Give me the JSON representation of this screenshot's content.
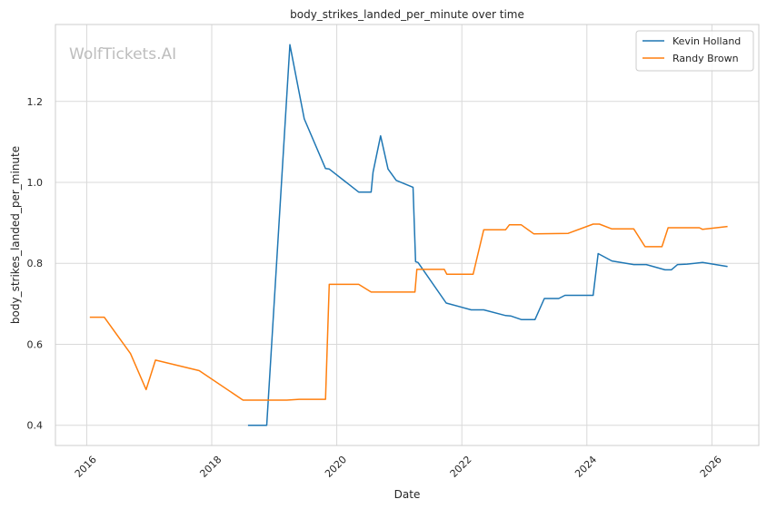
{
  "chart_data": {
    "type": "line",
    "title": "body_strikes_landed_per_minute over time",
    "xlabel": "Date",
    "ylabel": "body_strikes_landed_per_minute",
    "watermark": "WolfTickets.AI",
    "xlim": [
      2015.5,
      2026.75
    ],
    "ylim": [
      0.35,
      1.39
    ],
    "x_ticks": [
      2016,
      2018,
      2020,
      2022,
      2024,
      2026
    ],
    "y_ticks": [
      0.4,
      0.6,
      0.8,
      1.0,
      1.2
    ],
    "y_tick_labels": [
      "0.4",
      "0.6",
      "0.8",
      "1.0",
      "1.2"
    ],
    "grid": true,
    "legend_position": "top-right",
    "series": [
      {
        "name": "Kevin Holland",
        "color": "#1f77b4",
        "points": [
          [
            2018.58,
            0.4
          ],
          [
            2018.88,
            0.4
          ],
          [
            2019.25,
            1.34
          ],
          [
            2019.48,
            1.157
          ],
          [
            2019.82,
            1.034
          ],
          [
            2019.88,
            1.033
          ],
          [
            2020.35,
            0.976
          ],
          [
            2020.55,
            0.976
          ],
          [
            2020.58,
            1.025
          ],
          [
            2020.7,
            1.115
          ],
          [
            2020.82,
            1.033
          ],
          [
            2020.95,
            1.005
          ],
          [
            2021.22,
            0.988
          ],
          [
            2021.26,
            0.804
          ],
          [
            2021.3,
            0.802
          ],
          [
            2021.75,
            0.702
          ],
          [
            2022.15,
            0.685
          ],
          [
            2022.35,
            0.685
          ],
          [
            2022.7,
            0.671
          ],
          [
            2022.78,
            0.67
          ],
          [
            2022.95,
            0.661
          ],
          [
            2023.17,
            0.661
          ],
          [
            2023.32,
            0.713
          ],
          [
            2023.55,
            0.713
          ],
          [
            2023.65,
            0.721
          ],
          [
            2024.1,
            0.721
          ],
          [
            2024.18,
            0.824
          ],
          [
            2024.4,
            0.806
          ],
          [
            2024.75,
            0.797
          ],
          [
            2024.95,
            0.797
          ],
          [
            2025.25,
            0.784
          ],
          [
            2025.35,
            0.784
          ],
          [
            2025.45,
            0.797
          ],
          [
            2025.6,
            0.798
          ],
          [
            2025.85,
            0.802
          ],
          [
            2026.25,
            0.792
          ]
        ]
      },
      {
        "name": "Randy Brown",
        "color": "#ff7f0e",
        "points": [
          [
            2016.05,
            0.667
          ],
          [
            2016.28,
            0.667
          ],
          [
            2016.7,
            0.577
          ],
          [
            2016.95,
            0.488
          ],
          [
            2017.1,
            0.561
          ],
          [
            2017.8,
            0.535
          ],
          [
            2018.5,
            0.462
          ],
          [
            2019.2,
            0.462
          ],
          [
            2019.4,
            0.464
          ],
          [
            2019.82,
            0.464
          ],
          [
            2019.88,
            0.748
          ],
          [
            2020.35,
            0.748
          ],
          [
            2020.55,
            0.729
          ],
          [
            2021.25,
            0.729
          ],
          [
            2021.28,
            0.785
          ],
          [
            2021.72,
            0.785
          ],
          [
            2021.76,
            0.773
          ],
          [
            2022.18,
            0.773
          ],
          [
            2022.35,
            0.883
          ],
          [
            2022.7,
            0.883
          ],
          [
            2022.76,
            0.895
          ],
          [
            2022.95,
            0.895
          ],
          [
            2023.15,
            0.873
          ],
          [
            2023.7,
            0.874
          ],
          [
            2024.1,
            0.897
          ],
          [
            2024.2,
            0.897
          ],
          [
            2024.4,
            0.885
          ],
          [
            2024.75,
            0.885
          ],
          [
            2024.93,
            0.841
          ],
          [
            2025.2,
            0.841
          ],
          [
            2025.3,
            0.888
          ],
          [
            2025.8,
            0.888
          ],
          [
            2025.85,
            0.884
          ],
          [
            2026.25,
            0.891
          ]
        ]
      }
    ]
  }
}
